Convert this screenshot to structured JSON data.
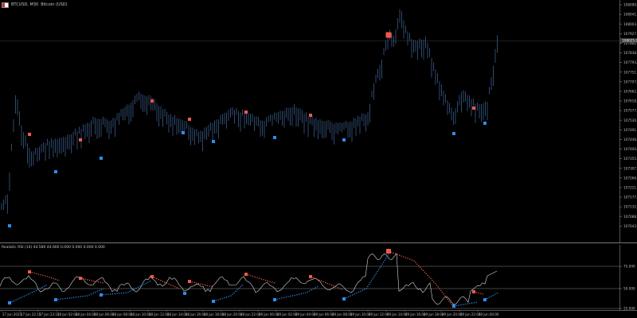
{
  "window": {
    "symbol_label": "BTCUSD, M30",
    "description": "Bitcoin (USD)",
    "flag_icon": "flag-icon"
  },
  "price_axis": {
    "ticks": [
      "108090.00",
      "108041.00",
      "108003.00",
      "107927.00",
      "107882.00",
      "107838.00",
      "107793.00",
      "107751.00",
      "107707.00",
      "107662.00",
      "107618.00",
      "107577.00",
      "107530.00",
      "107491.00",
      "107446.00",
      "107400.00",
      "107355.00",
      "107307.00",
      "107266.00",
      "107221.00",
      "107177.00",
      "107132.00",
      "107088.00",
      "107043.00"
    ],
    "current_price": "108025.00"
  },
  "indicator": {
    "label": "Realistic RSI (14) 44.580 44.660 0.000 0.000 0.000 0.000",
    "levels": [
      "75.000",
      "50.000",
      "25.000"
    ]
  },
  "time_axis": {
    "labels": [
      "27 Jun 2025",
      "27 Jun 22:15",
      "27 Jun 23:15",
      "28 Jun 02:00",
      "28 Jun 04:00",
      "28 Jun 06:00",
      "28 Jun 08:00",
      "28 Jun 10:00",
      "28 Jun 12:00",
      "28 Jun 14:00",
      "28 Jun 16:00",
      "28 Jun 18:00",
      "28 Jun 20:00",
      "28 Jun 22:00",
      "29 Jun 00:00",
      "29 Jun 02:00",
      "29 Jun 04:00",
      "29 Jun 06:00",
      "29 Jun 08:00",
      "29 Jun 10:00",
      "29 Jun 12:00",
      "29 Jun 14:00",
      "29 Jun 16:00",
      "29 Jun 18:00",
      "29 Jun 20:00",
      "29 Jun 22:00",
      "30 Jun 00:00"
    ]
  },
  "colors": {
    "background": "#000000",
    "bars": "#34527a",
    "buy_marker": "#2d8cf0",
    "sell_marker": "#f0584a",
    "rsi_line": "#d8d8d8",
    "grid": "#2a2a2a",
    "axis_text": "#bdbdbd"
  }
}
